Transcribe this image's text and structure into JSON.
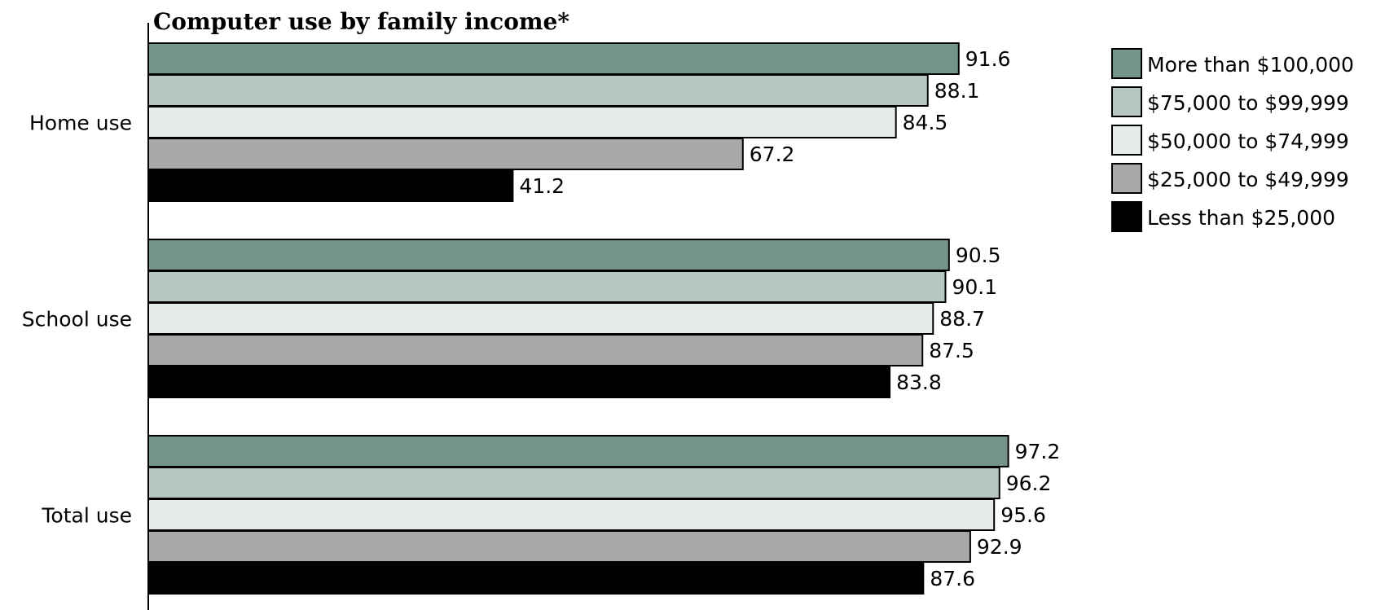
{
  "chart_data": {
    "type": "bar",
    "orientation": "horizontal",
    "title": "Computer use by family income*",
    "categories": [
      "Home use",
      "School use",
      "Total use"
    ],
    "series": [
      {
        "name": "More than $100,000",
        "color": "#739488",
        "values": [
          91.6,
          90.5,
          97.2
        ]
      },
      {
        "name": "$75,000 to $99,999",
        "color": "#b7c8c1",
        "values": [
          88.1,
          90.1,
          96.2
        ]
      },
      {
        "name": "$50,000 to $74,999",
        "color": "#e6ecea",
        "values": [
          84.5,
          88.7,
          95.6
        ]
      },
      {
        "name": "$25,000 to $49,999",
        "color": "#a8a8a8",
        "values": [
          67.2,
          87.5,
          92.9
        ]
      },
      {
        "name": "Less than $25,000",
        "color": "#000000",
        "values": [
          41.2,
          83.8,
          87.6
        ]
      }
    ],
    "xlim": [
      0,
      100
    ],
    "grid": false,
    "legend_position": "right"
  }
}
